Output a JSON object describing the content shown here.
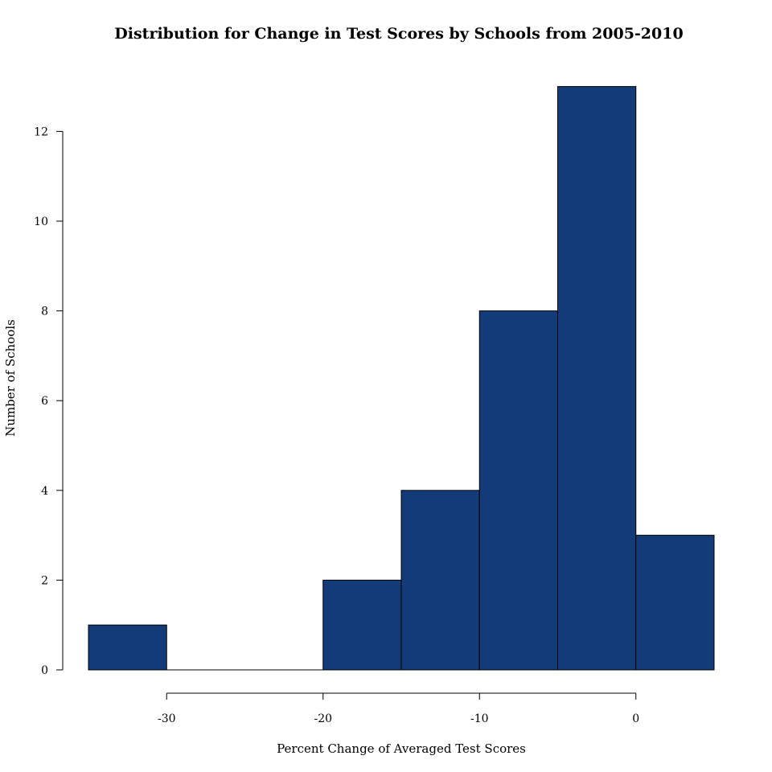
{
  "chart_data": {
    "type": "histogram",
    "title": "Distribution for Change in Test Scores by Schools from 2005-2010",
    "xlabel": "Percent Change of Averaged Test Scores",
    "ylabel": "Number of Schools",
    "bins": [
      {
        "start": -35,
        "end": -30,
        "count": 1
      },
      {
        "start": -30,
        "end": -25,
        "count": 0
      },
      {
        "start": -25,
        "end": -20,
        "count": 0
      },
      {
        "start": -20,
        "end": -15,
        "count": 2
      },
      {
        "start": -15,
        "end": -10,
        "count": 4
      },
      {
        "start": -10,
        "end": -5,
        "count": 8
      },
      {
        "start": -5,
        "end": 0,
        "count": 13
      },
      {
        "start": 0,
        "end": 5,
        "count": 3
      }
    ],
    "xlim": [
      -35,
      5
    ],
    "ylim": [
      0,
      13
    ],
    "x_ticks": [
      -30,
      -20,
      -10,
      0
    ],
    "x_tick_labels": [
      "-30",
      "-20",
      "-10",
      "0"
    ],
    "y_ticks": [
      0,
      2,
      4,
      6,
      8,
      10,
      12
    ],
    "y_tick_labels": [
      "0",
      "2",
      "4",
      "6",
      "8",
      "10",
      "12"
    ],
    "grid": false,
    "bar_color": "#133b78",
    "edge_color": "#000000"
  }
}
